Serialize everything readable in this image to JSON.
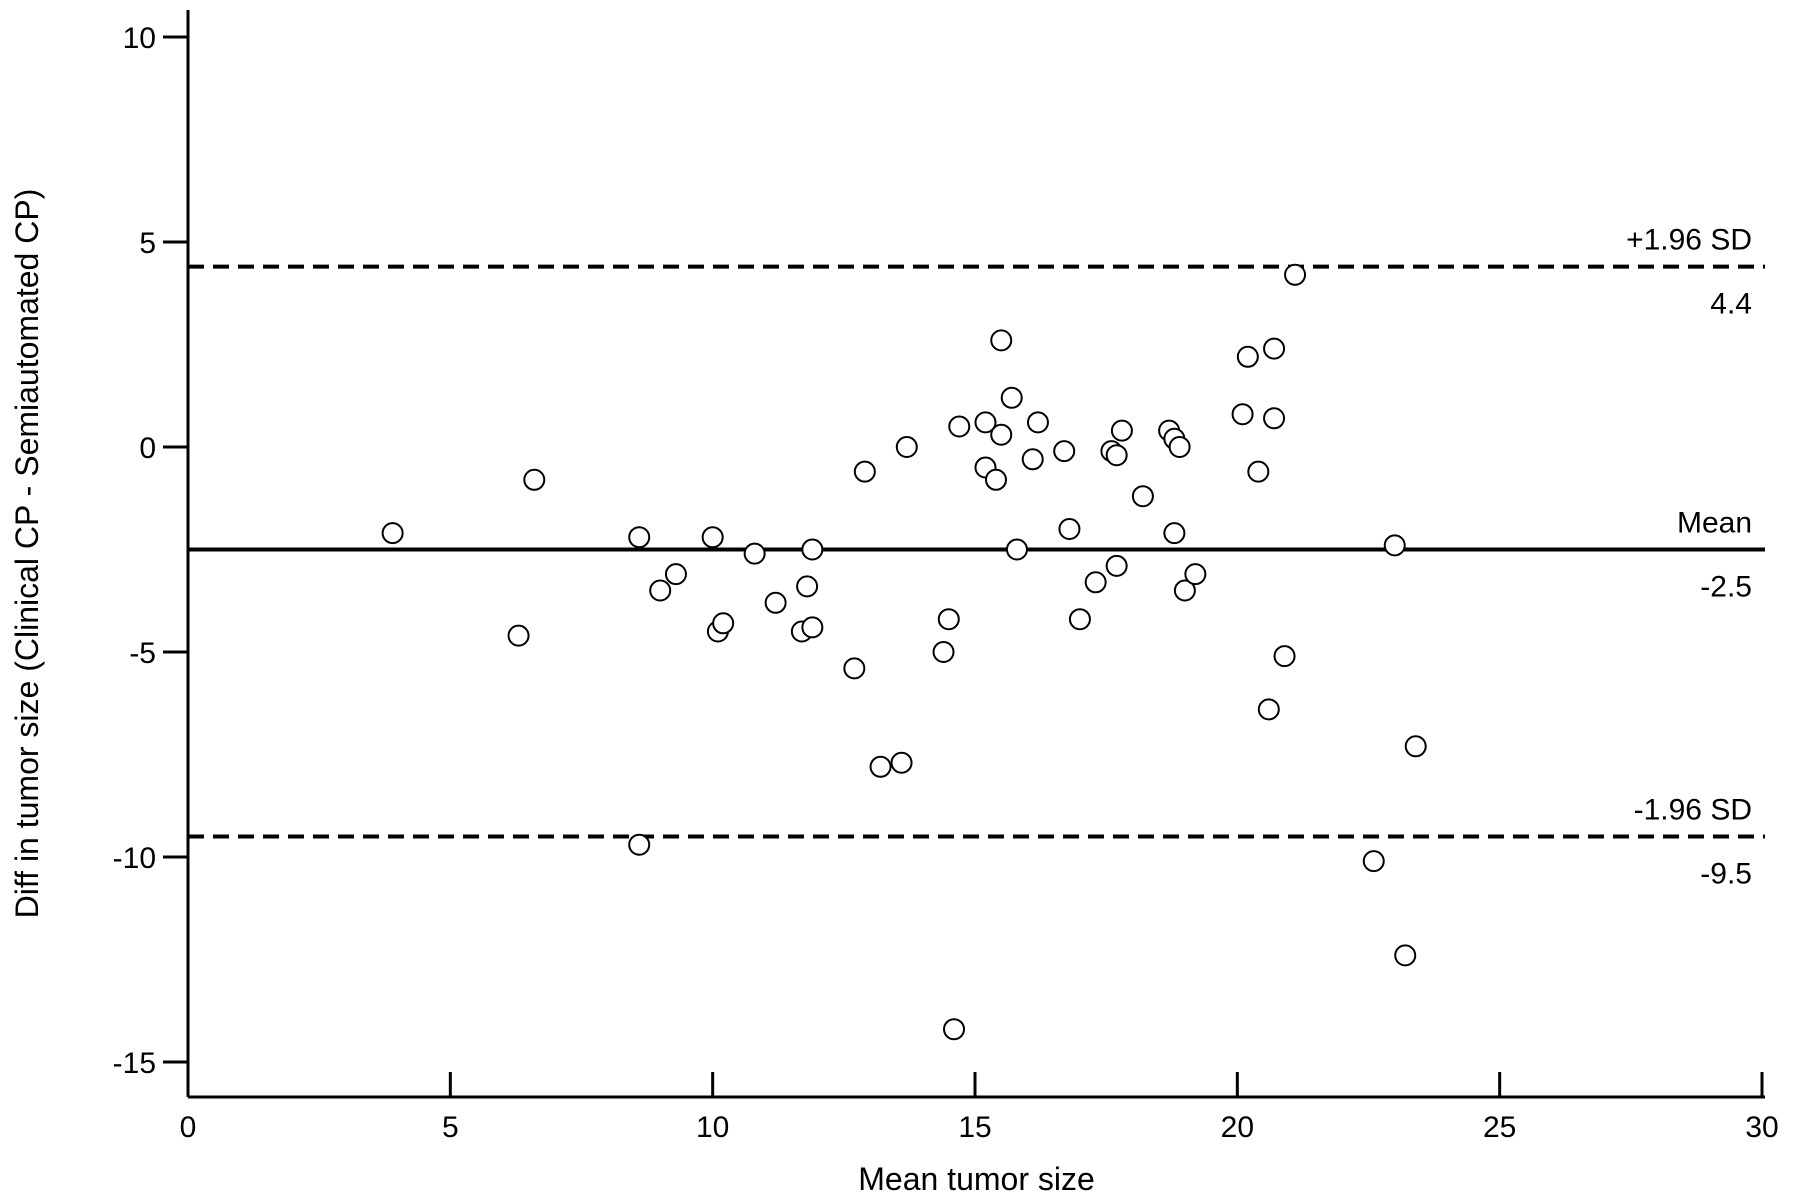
{
  "chart_data": {
    "type": "scatter",
    "title": "",
    "xlabel": "Mean tumor size",
    "ylabel": "Diff in tumor size (Clinical CP - Semiautomated CP)",
    "xlim": [
      0,
      30
    ],
    "ylim": [
      -16,
      10.5
    ],
    "xticks": [
      0,
      5,
      10,
      15,
      20,
      25,
      30
    ],
    "yticks": [
      -15,
      -10,
      -5,
      0,
      5,
      10
    ],
    "grid": false,
    "marker": "open-circle",
    "reference_lines": [
      {
        "name": "+1.96 SD",
        "value": 4.4,
        "value_label": "4.4",
        "style": "dashed"
      },
      {
        "name": "Mean",
        "value": -2.5,
        "value_label": "-2.5",
        "style": "solid"
      },
      {
        "name": "-1.96 SD",
        "value": -9.5,
        "value_label": "-9.5",
        "style": "dashed"
      }
    ],
    "points": [
      {
        "x": 3.9,
        "y": -2.1
      },
      {
        "x": 6.3,
        "y": -4.6
      },
      {
        "x": 6.6,
        "y": -0.8
      },
      {
        "x": 8.6,
        "y": -2.2
      },
      {
        "x": 8.6,
        "y": -9.7
      },
      {
        "x": 9.0,
        "y": -3.5
      },
      {
        "x": 9.3,
        "y": -3.1
      },
      {
        "x": 10.0,
        "y": -2.2
      },
      {
        "x": 10.1,
        "y": -4.5
      },
      {
        "x": 10.2,
        "y": -4.3
      },
      {
        "x": 10.8,
        "y": -2.6
      },
      {
        "x": 11.2,
        "y": -3.8
      },
      {
        "x": 11.7,
        "y": -4.5
      },
      {
        "x": 11.8,
        "y": -3.4
      },
      {
        "x": 11.9,
        "y": -4.4
      },
      {
        "x": 11.9,
        "y": -2.5
      },
      {
        "x": 12.7,
        "y": -5.4
      },
      {
        "x": 12.9,
        "y": -0.6
      },
      {
        "x": 13.2,
        "y": -7.8
      },
      {
        "x": 13.6,
        "y": -7.7
      },
      {
        "x": 13.7,
        "y": 0.0
      },
      {
        "x": 14.4,
        "y": -5.0
      },
      {
        "x": 14.5,
        "y": -4.2
      },
      {
        "x": 14.6,
        "y": -14.2
      },
      {
        "x": 14.7,
        "y": 0.5
      },
      {
        "x": 15.2,
        "y": 0.6
      },
      {
        "x": 15.2,
        "y": -0.5
      },
      {
        "x": 15.4,
        "y": -0.8
      },
      {
        "x": 15.5,
        "y": 2.6
      },
      {
        "x": 15.5,
        "y": 0.3
      },
      {
        "x": 15.7,
        "y": 1.2
      },
      {
        "x": 15.8,
        "y": -2.5
      },
      {
        "x": 16.1,
        "y": -0.3
      },
      {
        "x": 16.2,
        "y": 0.6
      },
      {
        "x": 16.7,
        "y": -0.1
      },
      {
        "x": 16.8,
        "y": -2.0
      },
      {
        "x": 17.0,
        "y": -4.2
      },
      {
        "x": 17.3,
        "y": -3.3
      },
      {
        "x": 17.6,
        "y": -0.1
      },
      {
        "x": 17.7,
        "y": -0.2
      },
      {
        "x": 17.7,
        "y": -2.9
      },
      {
        "x": 17.8,
        "y": 0.4
      },
      {
        "x": 18.2,
        "y": -1.2
      },
      {
        "x": 18.7,
        "y": 0.4
      },
      {
        "x": 18.8,
        "y": -2.1
      },
      {
        "x": 18.8,
        "y": 0.2
      },
      {
        "x": 18.9,
        "y": 0.0
      },
      {
        "x": 19.0,
        "y": -3.5
      },
      {
        "x": 19.2,
        "y": -3.1
      },
      {
        "x": 20.1,
        "y": 0.8
      },
      {
        "x": 20.2,
        "y": 2.2
      },
      {
        "x": 20.4,
        "y": -0.6
      },
      {
        "x": 20.6,
        "y": -6.4
      },
      {
        "x": 20.7,
        "y": 2.4
      },
      {
        "x": 20.7,
        "y": 0.7
      },
      {
        "x": 20.9,
        "y": -5.1
      },
      {
        "x": 21.1,
        "y": 4.2
      },
      {
        "x": 22.6,
        "y": -10.1
      },
      {
        "x": 23.0,
        "y": -2.4
      },
      {
        "x": 23.2,
        "y": -12.4
      },
      {
        "x": 23.4,
        "y": -7.3
      }
    ]
  }
}
